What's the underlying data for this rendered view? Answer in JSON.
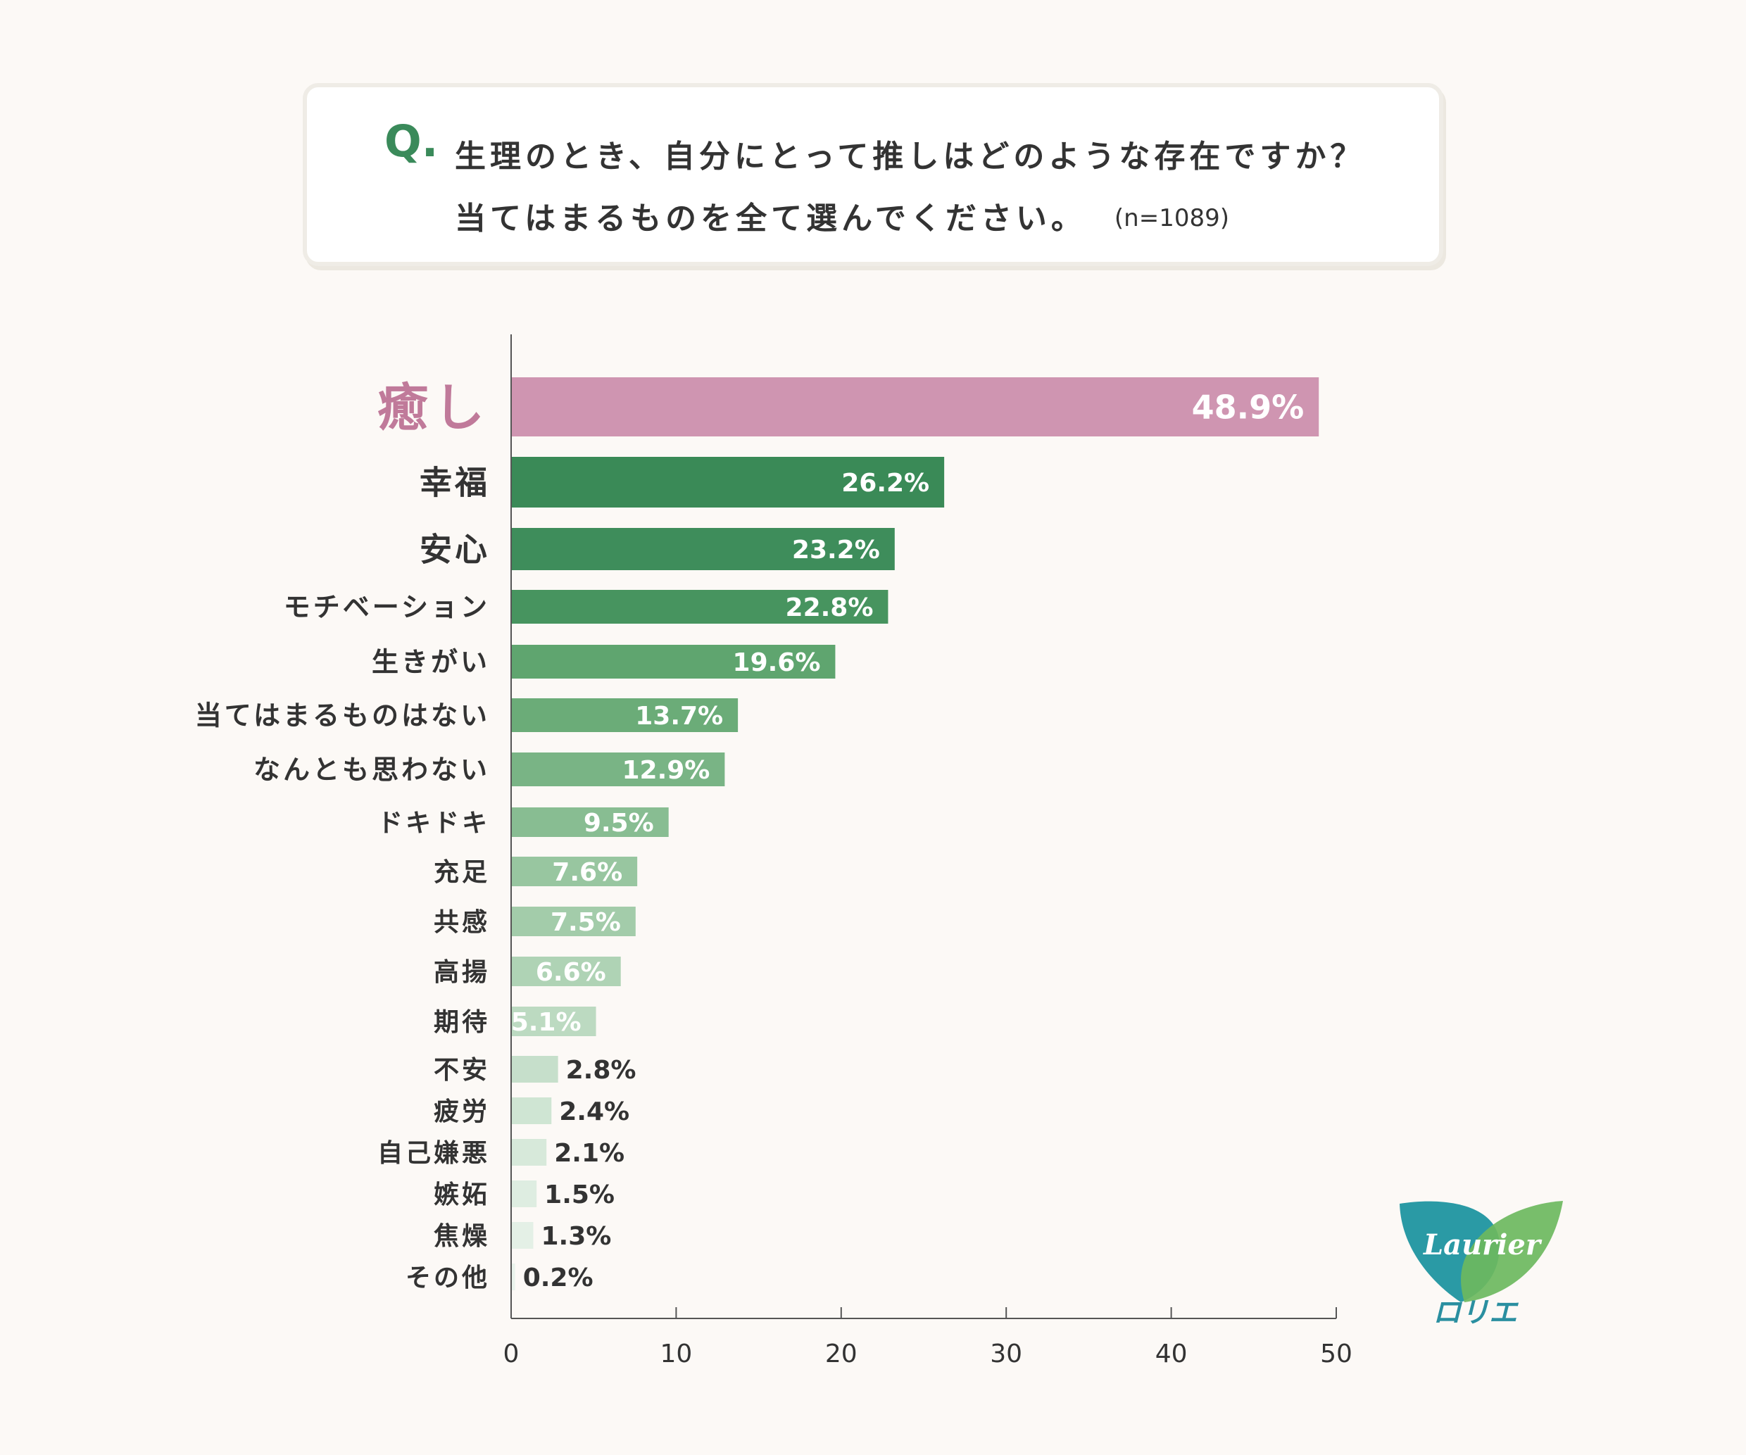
{
  "question": {
    "mark": "Q.",
    "line1": "生理のとき、自分にとって推しはどのような存在ですか？",
    "line2": "当てはまるものを全て選んでください。",
    "n": "(n=1089)"
  },
  "logo": {
    "brand": "Laurier",
    "katakana": "ロリエ"
  },
  "colors": {
    "highlight": "#cf95b1",
    "bar_scale": [
      "#3a8a57",
      "#3e8d5b",
      "#47945f",
      "#5fa56f",
      "#6bac78",
      "#79b485",
      "#88bd92",
      "#98c6a0",
      "#a3ccaa",
      "#afd3b5",
      "#bcdac1",
      "#c6dfcb",
      "#cfe5d3",
      "#d7e9da",
      "#deede1",
      "#e4f0e6",
      "#eaf3ec"
    ]
  },
  "chart_data": {
    "type": "bar",
    "orientation": "horizontal",
    "categories": [
      "癒し",
      "幸福",
      "安心",
      "モチベーション",
      "生きがい",
      "当てはまるものはない",
      "なんとも思わない",
      "ドキドキ",
      "充足",
      "共感",
      "高揚",
      "期待",
      "不安",
      "疲労",
      "自己嫌悪",
      "嫉妬",
      "焦燥",
      "その他"
    ],
    "values": [
      48.9,
      26.2,
      23.2,
      22.8,
      19.6,
      13.7,
      12.9,
      9.5,
      7.6,
      7.5,
      6.6,
      5.1,
      2.8,
      2.4,
      2.1,
      1.5,
      1.3,
      0.2
    ],
    "value_labels": [
      "48.9%",
      "26.2%",
      "23.2%",
      "22.8%",
      "19.6%",
      "13.7%",
      "12.9%",
      "9.5%",
      "7.6%",
      "7.5%",
      "6.6%",
      "5.1%",
      "2.8%",
      "2.4%",
      "2.1%",
      "1.5%",
      "1.3%",
      "0.2%"
    ],
    "xlim": [
      0,
      50
    ],
    "xticks": [
      0,
      10,
      20,
      30,
      40,
      50
    ],
    "xtick_labels": [
      "0",
      "10",
      "20",
      "30",
      "40",
      "50"
    ],
    "grid": false,
    "legend": "none"
  }
}
